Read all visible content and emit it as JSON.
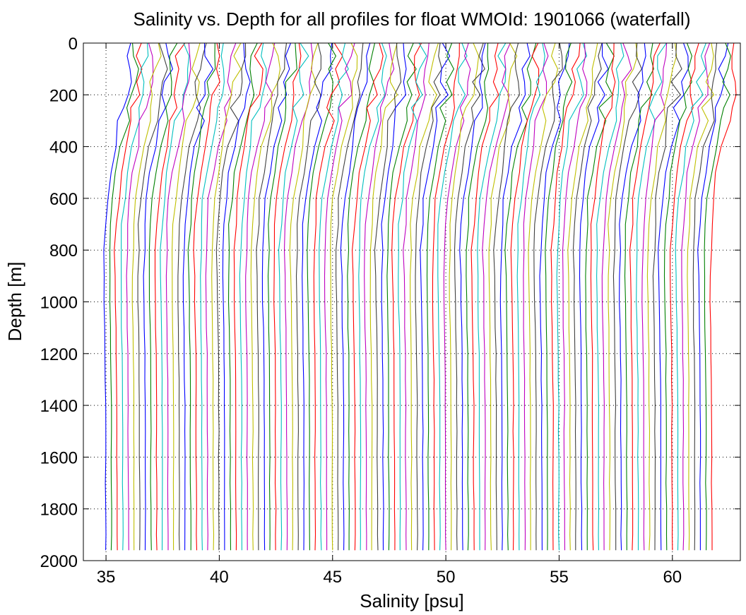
{
  "chart_data": {
    "type": "line",
    "title": "Salinity vs. Depth for all profiles for float WMOId: 1901066 (waterfall)",
    "xlabel": "Salinity [psu]",
    "ylabel": "Depth [m]",
    "xlim": [
      34.0,
      63.0
    ],
    "ylim": [
      0,
      2000
    ],
    "y_axis_reversed": true,
    "grid": true,
    "x_ticks": [
      35,
      40,
      45,
      50,
      55,
      60
    ],
    "y_ticks": [
      0,
      200,
      400,
      600,
      800,
      1000,
      1200,
      1400,
      1600,
      1800,
      2000
    ],
    "series_colors": [
      "#0000ff",
      "#008000",
      "#ff0000",
      "#00bfbf",
      "#bf00bf",
      "#bfbf00",
      "#404040"
    ],
    "waterfall_offset_psu": 0.25,
    "profile_count": 108,
    "depth": [
      0,
      50,
      100,
      150,
      200,
      250,
      300,
      400,
      500,
      600,
      700,
      800,
      900,
      1000,
      1100,
      1200,
      1300,
      1400,
      1500,
      1600,
      1700,
      1800,
      1900,
      1960
    ],
    "base_profile_salinity": [
      36.02,
      36.02,
      36.0,
      35.9,
      35.9,
      35.7,
      35.65,
      35.4,
      35.2,
      35.05,
      34.96,
      34.92,
      34.91,
      34.92,
      34.94,
      34.96,
      34.97,
      34.98,
      34.98,
      34.98,
      34.98,
      34.99,
      34.99,
      34.99
    ]
  }
}
